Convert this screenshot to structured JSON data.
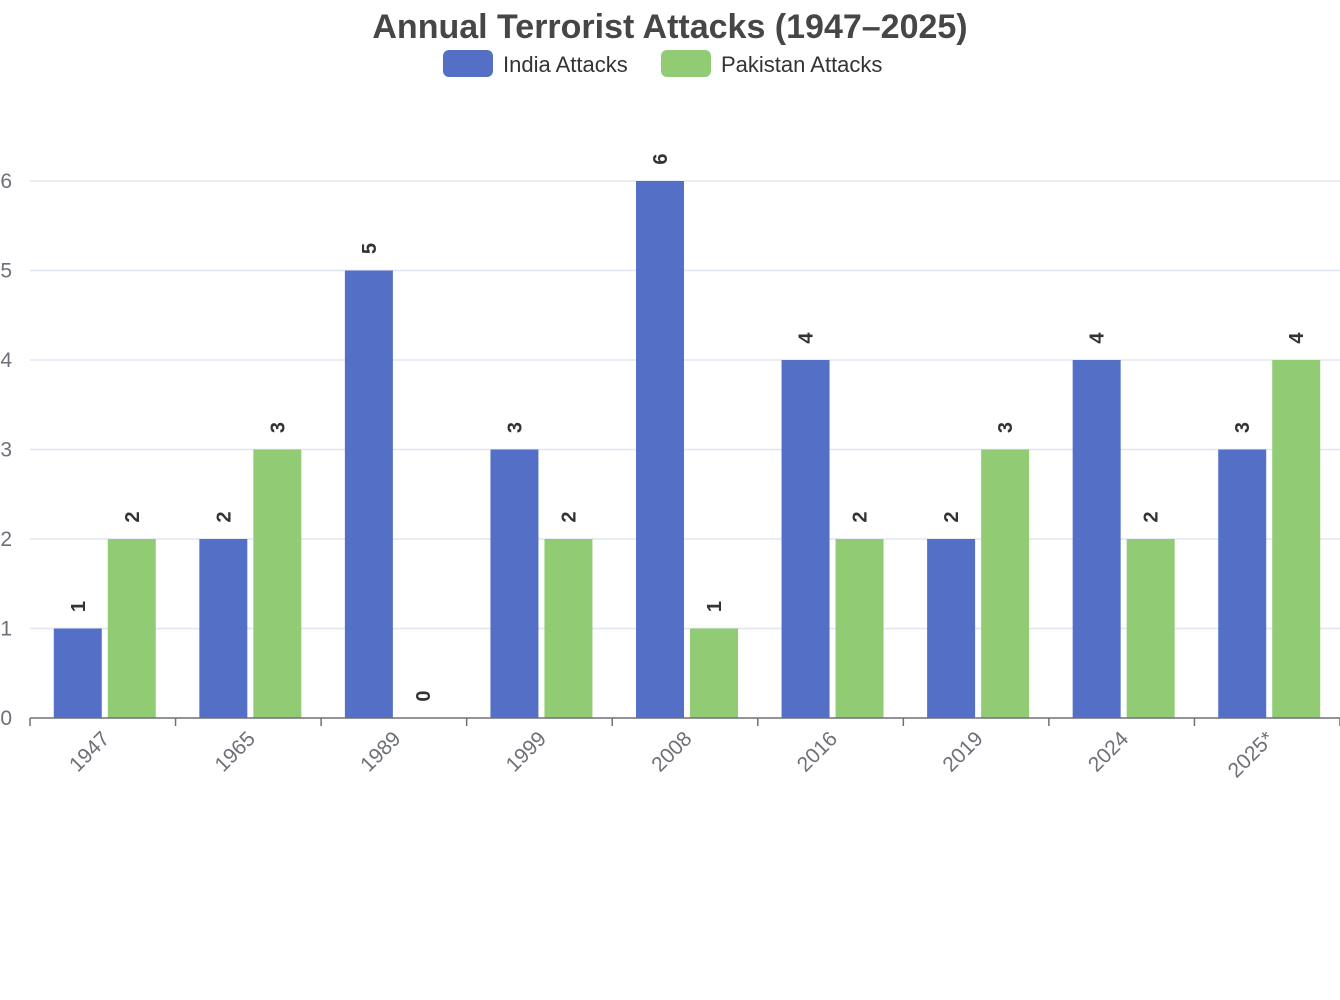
{
  "chart_data": {
    "type": "bar",
    "title": "Annual Terrorist Attacks (1947–2025)",
    "categories": [
      "1947",
      "1965",
      "1989",
      "1999",
      "2008",
      "2016",
      "2019",
      "2024",
      "2025*"
    ],
    "series": [
      {
        "name": "India Attacks",
        "values": [
          1,
          2,
          5,
          3,
          6,
          4,
          2,
          4,
          3
        ],
        "color": "#5470c6"
      },
      {
        "name": "Pakistan Attacks",
        "values": [
          2,
          3,
          0,
          2,
          1,
          2,
          3,
          2,
          4
        ],
        "color": "#91cc75"
      }
    ],
    "xlabel": "",
    "ylabel": "",
    "ylim": [
      0,
      6
    ],
    "yticks": [
      0,
      1,
      2,
      3,
      4,
      5,
      6
    ],
    "grid": true,
    "legend_position": "top-center",
    "data_labels": true,
    "colors": {
      "title": "#464646",
      "text": "#333333",
      "tick_label": "#6e7079",
      "axis_line": "#6e7079",
      "grid_line": "#e0e6f1"
    }
  }
}
